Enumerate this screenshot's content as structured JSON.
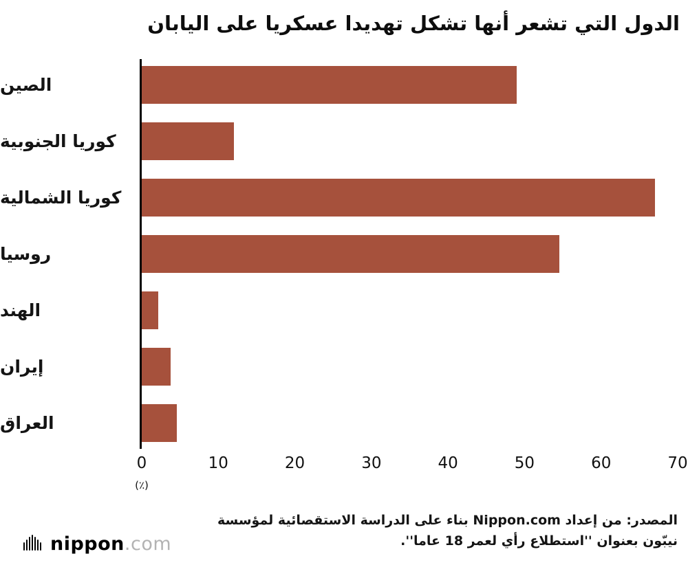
{
  "title": "الدول التي تشعر أنها تشكل تهديدا عسكريا على اليابان",
  "chart_data": {
    "type": "bar",
    "orientation": "horizontal",
    "title": "الدول التي تشعر أنها تشكل تهديدا عسكريا على اليابان",
    "categories": [
      "الصين",
      "كوريا الجنوبية",
      "كوريا الشمالية",
      "روسيا",
      "الهند",
      "إيران",
      "العراق"
    ],
    "values": [
      49,
      12,
      67,
      54.5,
      2.2,
      3.8,
      4.6
    ],
    "xlim": [
      0,
      70
    ],
    "xticks": [
      0,
      10,
      20,
      30,
      40,
      50,
      60,
      70
    ],
    "unit_label": "(٪)",
    "bar_color": "#a6513c",
    "grid": false,
    "legend": false
  },
  "source": {
    "line1": "المصدر: من إعداد Nippon.com بناء على الدراسة الاستقصائية لمؤسسة",
    "line2": "نيبّون بعنوان ''استطلاع رأي لعمر 18 عاما''."
  },
  "logo": {
    "name": "nippon",
    "domain": ".com"
  }
}
